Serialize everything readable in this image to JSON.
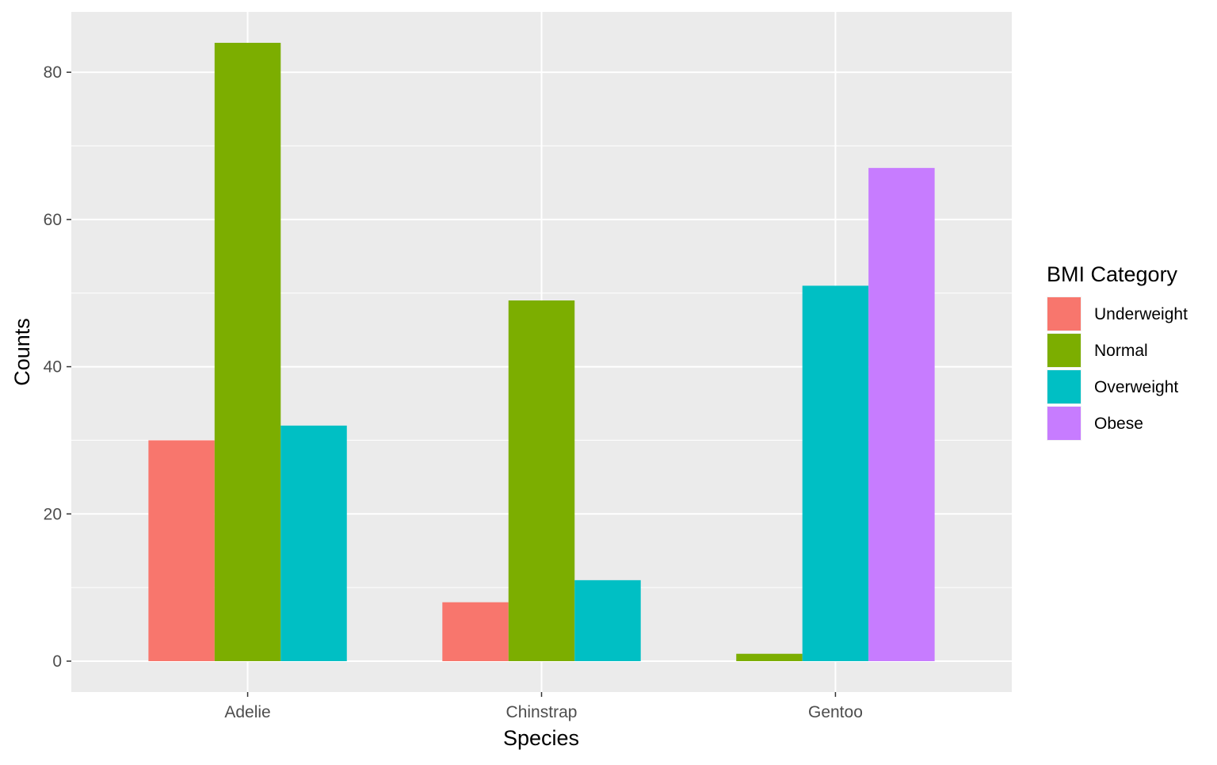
{
  "chart_data": {
    "type": "bar",
    "title": "",
    "xlabel": "Species",
    "ylabel": "Counts",
    "categories": [
      "Adelie",
      "Chinstrap",
      "Gentoo"
    ],
    "series": [
      {
        "name": "Underweight",
        "color": "#F8766D",
        "values": [
          30,
          8,
          null
        ]
      },
      {
        "name": "Normal",
        "color": "#7CAE00",
        "values": [
          84,
          49,
          1
        ]
      },
      {
        "name": "Overweight",
        "color": "#00BFC4",
        "values": [
          32,
          11,
          51
        ]
      },
      {
        "name": "Obese",
        "color": "#C77CFF",
        "values": [
          null,
          null,
          67
        ]
      }
    ],
    "ylim": [
      -4.2,
      88.2
    ],
    "yticks": [
      0,
      20,
      40,
      60,
      80
    ],
    "grid": true,
    "panel_background": "#EBEBEB",
    "legend": {
      "title": "BMI Category",
      "position": "right"
    }
  }
}
